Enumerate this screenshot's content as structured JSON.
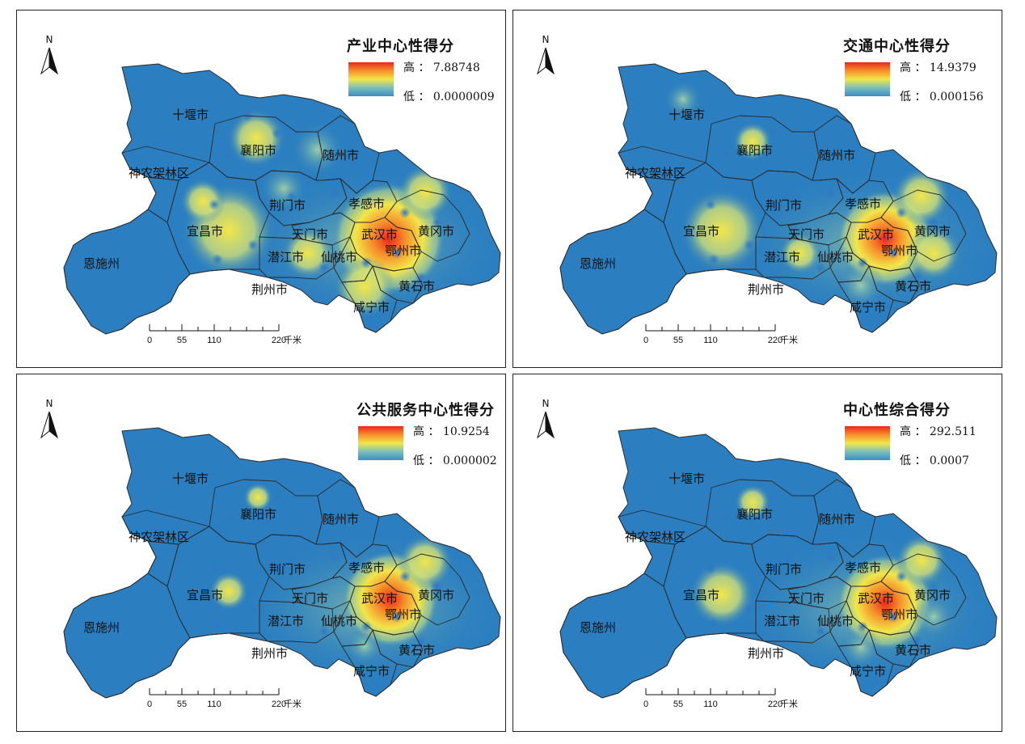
{
  "common": {
    "north_label": "N",
    "legend_high_prefix": "高 ：",
    "legend_low_prefix": "低 ：",
    "scale_ticks": [
      "0",
      "55",
      "110",
      "220"
    ],
    "scale_unit": "千米",
    "colors": {
      "ocean_blue": "#2b7fc0",
      "mid_yellow": "#f2e64a",
      "hot_red": "#e8281c",
      "border": "#2a2a2a"
    }
  },
  "cities": {
    "shiyan": "十堰市",
    "xiangyang": "襄阳市",
    "suizhou": "随州市",
    "shennongjia": "神农架林区",
    "jingmen": "荆门市",
    "xiaogan": "孝感市",
    "yichang": "宜昌市",
    "tianmen": "天门市",
    "wuhan": "武汉市",
    "huanggang": "黄冈市",
    "ezhou": "鄂州市",
    "enshi": "恩施州",
    "qianjiang": "潜江市",
    "xiantao": "仙桃市",
    "huangshi": "黄石市",
    "jingzhou": "荆州市",
    "xianning": "咸宁市"
  },
  "panels": [
    {
      "title": "产业中心性得分",
      "high": "7.88748",
      "low": "0.0000009"
    },
    {
      "title": "交通中心性得分",
      "high": "14.9379",
      "low": "0.000156"
    },
    {
      "title": "公共服务中心性得分",
      "high": "10.9254",
      "low": "0.000002"
    },
    {
      "title": "中心性综合得分",
      "high": "292.511",
      "low": "0.0007"
    }
  ]
}
